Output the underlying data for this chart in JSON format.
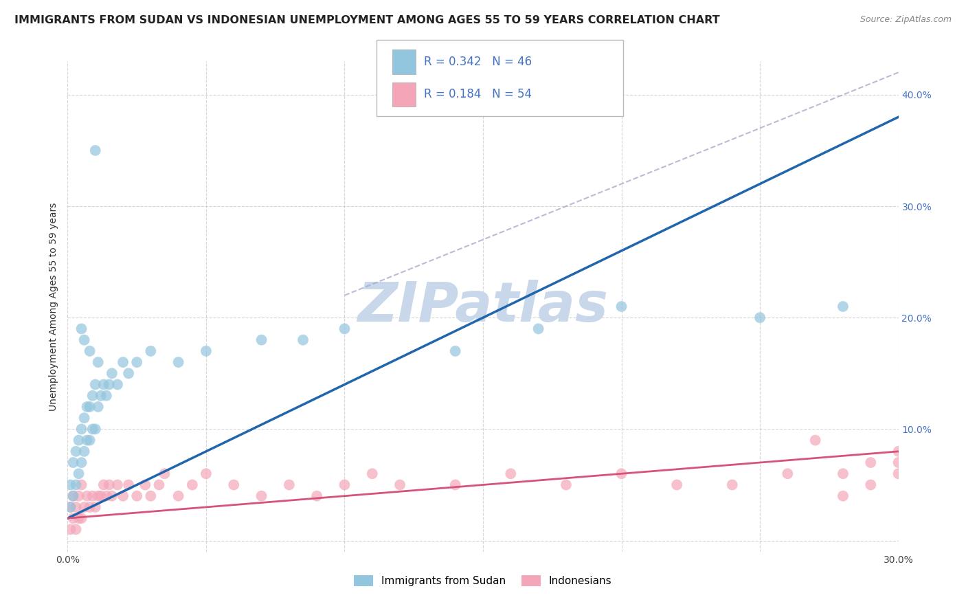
{
  "title": "IMMIGRANTS FROM SUDAN VS INDONESIAN UNEMPLOYMENT AMONG AGES 55 TO 59 YEARS CORRELATION CHART",
  "source": "Source: ZipAtlas.com",
  "ylabel": "Unemployment Among Ages 55 to 59 years",
  "xlim": [
    0.0,
    0.3
  ],
  "ylim": [
    -0.01,
    0.43
  ],
  "xticks": [
    0.0,
    0.05,
    0.1,
    0.15,
    0.2,
    0.25,
    0.3
  ],
  "yticks": [
    0.0,
    0.1,
    0.2,
    0.3,
    0.4
  ],
  "xtick_labels": [
    "0.0%",
    "",
    "",
    "",
    "",
    "",
    "30.0%"
  ],
  "ytick_labels_right": [
    "",
    "10.0%",
    "20.0%",
    "30.0%",
    "40.0%"
  ],
  "legend_labels": [
    "Immigrants from Sudan",
    "Indonesians"
  ],
  "legend_r": [
    0.342,
    0.184
  ],
  "legend_n": [
    46,
    54
  ],
  "blue_color": "#92c5de",
  "pink_color": "#f4a6b8",
  "blue_line_color": "#2166ac",
  "pink_line_color": "#d6537a",
  "watermark": "ZIPatlas",
  "watermark_color": "#c8d8ea",
  "blue_scatter_x": [
    0.001,
    0.001,
    0.002,
    0.002,
    0.003,
    0.003,
    0.004,
    0.004,
    0.005,
    0.005,
    0.006,
    0.006,
    0.007,
    0.007,
    0.008,
    0.008,
    0.009,
    0.009,
    0.01,
    0.01,
    0.011,
    0.012,
    0.013,
    0.014,
    0.015,
    0.016,
    0.018,
    0.02,
    0.022,
    0.025,
    0.03,
    0.04,
    0.05,
    0.07,
    0.085,
    0.1,
    0.14,
    0.17,
    0.2,
    0.25,
    0.28,
    0.01,
    0.005,
    0.006,
    0.008,
    0.011
  ],
  "blue_scatter_y": [
    0.03,
    0.05,
    0.04,
    0.07,
    0.05,
    0.08,
    0.06,
    0.09,
    0.07,
    0.1,
    0.08,
    0.11,
    0.09,
    0.12,
    0.09,
    0.12,
    0.1,
    0.13,
    0.1,
    0.14,
    0.12,
    0.13,
    0.14,
    0.13,
    0.14,
    0.15,
    0.14,
    0.16,
    0.15,
    0.16,
    0.17,
    0.16,
    0.17,
    0.18,
    0.18,
    0.19,
    0.17,
    0.19,
    0.21,
    0.2,
    0.21,
    0.35,
    0.19,
    0.18,
    0.17,
    0.16
  ],
  "pink_scatter_x": [
    0.001,
    0.001,
    0.002,
    0.002,
    0.003,
    0.003,
    0.004,
    0.004,
    0.005,
    0.005,
    0.006,
    0.007,
    0.008,
    0.009,
    0.01,
    0.011,
    0.012,
    0.013,
    0.014,
    0.015,
    0.016,
    0.018,
    0.02,
    0.022,
    0.025,
    0.028,
    0.03,
    0.033,
    0.035,
    0.04,
    0.045,
    0.05,
    0.06,
    0.07,
    0.08,
    0.09,
    0.1,
    0.11,
    0.12,
    0.14,
    0.16,
    0.18,
    0.2,
    0.22,
    0.24,
    0.26,
    0.27,
    0.28,
    0.28,
    0.29,
    0.29,
    0.3,
    0.3,
    0.3
  ],
  "pink_scatter_y": [
    0.01,
    0.03,
    0.02,
    0.04,
    0.01,
    0.03,
    0.02,
    0.04,
    0.02,
    0.05,
    0.03,
    0.04,
    0.03,
    0.04,
    0.03,
    0.04,
    0.04,
    0.05,
    0.04,
    0.05,
    0.04,
    0.05,
    0.04,
    0.05,
    0.04,
    0.05,
    0.04,
    0.05,
    0.06,
    0.04,
    0.05,
    0.06,
    0.05,
    0.04,
    0.05,
    0.04,
    0.05,
    0.06,
    0.05,
    0.05,
    0.06,
    0.05,
    0.06,
    0.05,
    0.05,
    0.06,
    0.09,
    0.04,
    0.06,
    0.05,
    0.07,
    0.06,
    0.07,
    0.08
  ],
  "blue_line_x": [
    0.0,
    0.3
  ],
  "blue_line_y": [
    0.02,
    0.38
  ],
  "pink_line_x": [
    0.0,
    0.3
  ],
  "pink_line_y": [
    0.02,
    0.08
  ],
  "diag_line_x": [
    0.1,
    0.3
  ],
  "diag_line_y": [
    0.22,
    0.42
  ]
}
